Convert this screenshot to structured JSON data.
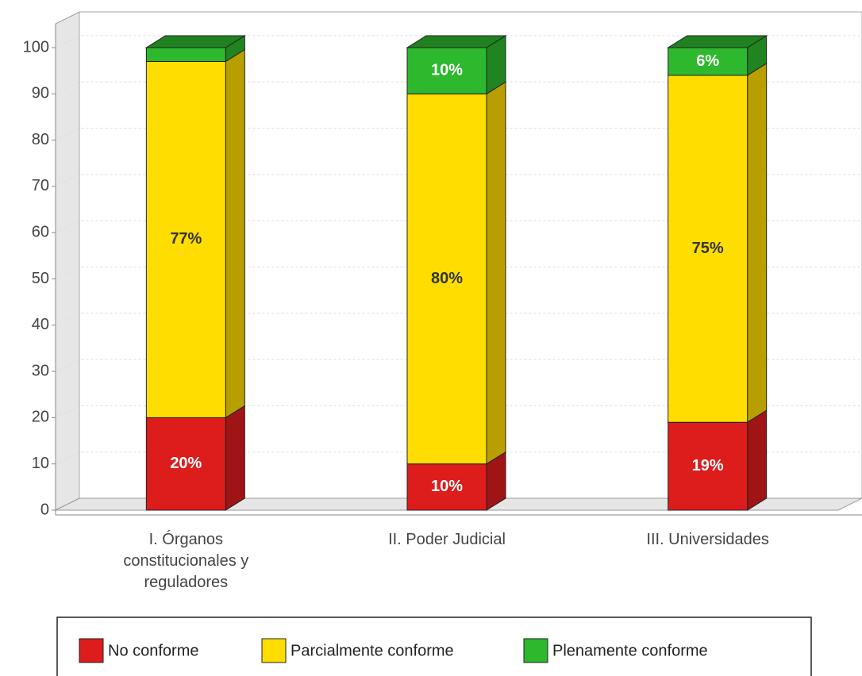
{
  "chart_data": {
    "type": "bar",
    "stacked": true,
    "three_d": true,
    "categories": [
      "I. Órganos constitucionales y reguladores",
      "II. Poder Judicial",
      "III. Universidades"
    ],
    "series": [
      {
        "name": "No conforme",
        "color": "#dd1c1c",
        "values": [
          20,
          10,
          19
        ],
        "value_labels": [
          "20%",
          "10%",
          "19%"
        ]
      },
      {
        "name": "Parcialmente conforme",
        "color": "#ffdd00",
        "values": [
          77,
          80,
          75
        ],
        "value_labels": [
          "77%",
          "80%",
          "75%"
        ]
      },
      {
        "name": "Plenamente conforme",
        "color": "#2db82d",
        "values": [
          3,
          10,
          6
        ],
        "value_labels": [
          null,
          "10%",
          "6%"
        ]
      }
    ],
    "ylim": [
      0,
      100
    ],
    "yticks": [
      0,
      10,
      20,
      30,
      40,
      50,
      60,
      70,
      80,
      90,
      100
    ],
    "grid": true,
    "legend": "bottom"
  }
}
